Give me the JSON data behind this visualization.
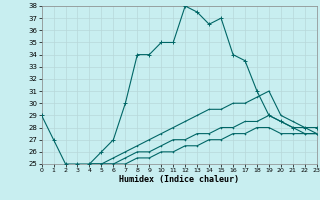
{
  "xlabel": "Humidex (Indice chaleur)",
  "bg_color": "#c8eef0",
  "grid_color": "#b8d8da",
  "line_color": "#006666",
  "xlim": [
    0,
    23
  ],
  "ylim": [
    25,
    38
  ],
  "yticks": [
    25,
    26,
    27,
    28,
    29,
    30,
    31,
    32,
    33,
    34,
    35,
    36,
    37,
    38
  ],
  "xticks": [
    0,
    1,
    2,
    3,
    4,
    5,
    6,
    7,
    8,
    9,
    10,
    11,
    12,
    13,
    14,
    15,
    16,
    17,
    18,
    19,
    20,
    21,
    22,
    23
  ],
  "line1_x": [
    0,
    1,
    2,
    3,
    4,
    5,
    6,
    7,
    8,
    9,
    10,
    11,
    12,
    13,
    14,
    15,
    16,
    17,
    18,
    19,
    20,
    21,
    22,
    23
  ],
  "line1_y": [
    29,
    27,
    25,
    25,
    25,
    26,
    27,
    30,
    34,
    34,
    35,
    35,
    38,
    37.5,
    36.5,
    37,
    34,
    33.5,
    31,
    29,
    28.5,
    28,
    28,
    28
  ],
  "line2_x": [
    4,
    5,
    6,
    7,
    8,
    9,
    10,
    11,
    12,
    13,
    14,
    15,
    16,
    17,
    18,
    19,
    20,
    21,
    22,
    23
  ],
  "line2_y": [
    25,
    25,
    25.5,
    26,
    26.5,
    27,
    27.5,
    28,
    28.5,
    29,
    29.5,
    29.5,
    30,
    30,
    30.5,
    31,
    29,
    28.5,
    28,
    27.5
  ],
  "line3_x": [
    4,
    5,
    6,
    7,
    8,
    9,
    10,
    11,
    12,
    13,
    14,
    15,
    16,
    17,
    18,
    19,
    20,
    21,
    22,
    23
  ],
  "line3_y": [
    25,
    25,
    25,
    25.5,
    26,
    26,
    26.5,
    27,
    27,
    27.5,
    27.5,
    28,
    28,
    28.5,
    28.5,
    29,
    28.5,
    28,
    27.5,
    27.5
  ],
  "line4_x": [
    4,
    5,
    6,
    7,
    8,
    9,
    10,
    11,
    12,
    13,
    14,
    15,
    16,
    17,
    18,
    19,
    20,
    21,
    22,
    23
  ],
  "line4_y": [
    25,
    25,
    25,
    25,
    25.5,
    25.5,
    26,
    26,
    26.5,
    26.5,
    27,
    27,
    27.5,
    27.5,
    28,
    28,
    27.5,
    27.5,
    27.5,
    27.5
  ]
}
